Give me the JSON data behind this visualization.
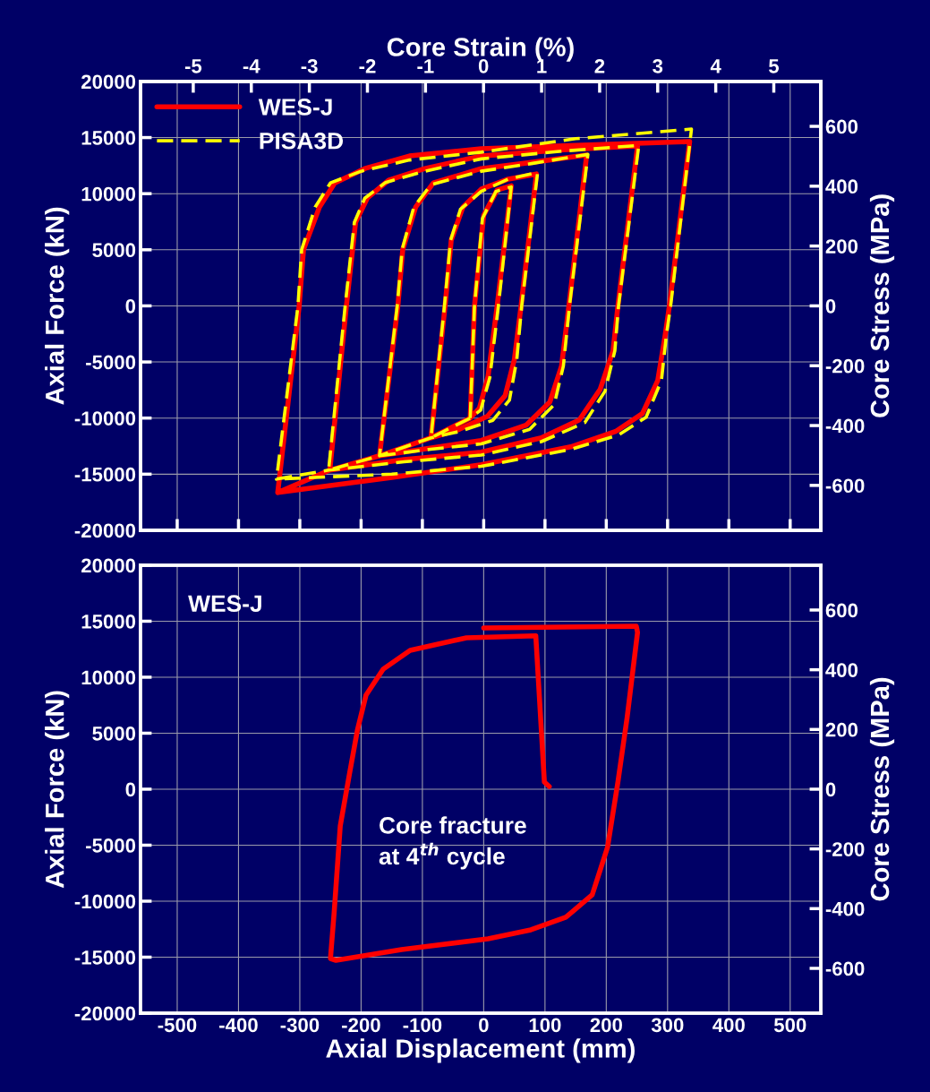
{
  "chart_data": [
    {
      "type": "line",
      "x2label": "Core Strain (%)",
      "ylabel": "Axial Force (kN)",
      "y2label": "Core Stress (MPa)",
      "xlim": [
        -560,
        550
      ],
      "ylim": [
        -20000,
        20000
      ],
      "y2lim": [
        -750,
        750
      ],
      "x2lim": [
        -5.91,
        5.81
      ],
      "xticks": [
        {
          "value": -500,
          "label": null
        },
        {
          "value": -400,
          "label": null
        },
        {
          "value": -300,
          "label": null
        },
        {
          "value": -200,
          "label": null
        },
        {
          "value": -100,
          "label": null
        },
        {
          "value": 0,
          "label": null
        },
        {
          "value": 100,
          "label": null
        },
        {
          "value": 200,
          "label": null
        },
        {
          "value": 300,
          "label": null
        },
        {
          "value": 400,
          "label": null
        },
        {
          "value": 500,
          "label": null
        }
      ],
      "yticks": [
        -20000,
        -15000,
        -10000,
        -5000,
        0,
        5000,
        10000,
        15000,
        20000
      ],
      "y2ticks": [
        -600,
        -400,
        -200,
        0,
        200,
        400,
        600
      ],
      "x2ticks": [
        -5,
        -4,
        -3,
        -2,
        -1,
        0,
        1,
        2,
        3,
        4,
        5
      ],
      "grid": true,
      "legend": "top left",
      "tick_labels": "y",
      "series": [
        {
          "name": "WES-J",
          "color": "#ff0000",
          "line_style": "solid",
          "x": [
            -22,
            -15,
            0,
            22,
            45,
            22,
            7,
            -7,
            -22,
            -86,
            -63,
            -53,
            -34,
            -4,
            40,
            86,
            61,
            50,
            35,
            6,
            -40,
            -86,
            -170,
            -140,
            -132,
            -111,
            -82,
            -4,
            80,
            168,
            139,
            127,
            108,
            69,
            -4,
            -90,
            -170,
            -251,
            -224,
            -209,
            -190,
            -155,
            -96,
            -4,
            130,
            251,
            219,
            211,
            190,
            156,
            94,
            -4,
            -130,
            -251,
            -336,
            -301,
            -294,
            -268,
            -243,
            -194,
            -121,
            -4,
            150,
            336,
            303,
            296,
            284,
            259,
            215,
            142,
            -4,
            -150,
            -336
          ],
          "values": [
            -10000,
            0,
            8080,
            10320,
            10700,
            0,
            -6320,
            -9120,
            -10000,
            -11760,
            0,
            5840,
            8800,
            10400,
            11300,
            11760,
            0,
            -4800,
            -8000,
            -9840,
            -11000,
            -11760,
            -13360,
            0,
            5040,
            8800,
            10960,
            12240,
            12800,
            13440,
            0,
            -5360,
            -8560,
            -10640,
            -12000,
            -12700,
            -13360,
            -14640,
            0,
            7440,
            9600,
            11200,
            12240,
            13360,
            13900,
            14240,
            0,
            -4000,
            -7440,
            -10160,
            -11760,
            -13040,
            -13700,
            -14640,
            -16640,
            0,
            5000,
            8800,
            10960,
            12240,
            13360,
            14000,
            14300,
            14640,
            0,
            -2640,
            -6640,
            -9600,
            -11200,
            -12560,
            -14160,
            -15300,
            -16640
          ]
        },
        {
          "name": "PISA3D",
          "color": "#ffff00",
          "line_style": "dashed",
          "x": [
            -22,
            -15,
            -2,
            20,
            45,
            24,
            10,
            -5,
            -22,
            -86,
            -64,
            -54,
            -38,
            -4,
            40,
            88,
            62,
            54,
            42,
            15,
            -40,
            -86,
            -170,
            -141,
            -133,
            -114,
            -86,
            -4,
            80,
            170,
            140,
            130,
            115,
            75,
            -4,
            -90,
            -170,
            -253,
            -226,
            -211,
            -194,
            -160,
            -96,
            -4,
            130,
            253,
            220,
            214,
            198,
            165,
            94,
            -4,
            -130,
            -253,
            -338,
            -303,
            -297,
            -275,
            -250,
            -200,
            -121,
            -4,
            150,
            339,
            305,
            298,
            290,
            265,
            220,
            142,
            -4,
            -150,
            -338
          ],
          "values": [
            -10000,
            0,
            7800,
            10200,
            10600,
            0,
            -6400,
            -9300,
            -10000,
            -11760,
            0,
            5840,
            8600,
            10200,
            11300,
            11900,
            0,
            -4800,
            -8400,
            -10200,
            -11200,
            -11760,
            -13360,
            0,
            5040,
            8800,
            10800,
            12000,
            12700,
            13500,
            0,
            -5360,
            -8800,
            -11000,
            -12300,
            -12800,
            -13360,
            -14640,
            0,
            7440,
            9600,
            11000,
            12000,
            13100,
            13800,
            14300,
            0,
            -4000,
            -7600,
            -10400,
            -12100,
            -13300,
            -13900,
            -14640,
            -15440,
            0,
            5000,
            8800,
            10960,
            12000,
            13000,
            13700,
            14900,
            15760,
            0,
            -2640,
            -6640,
            -9920,
            -11500,
            -12800,
            -14300,
            -15000,
            -15440
          ]
        }
      ]
    },
    {
      "type": "line",
      "xlabel": "Axial Displacement (mm)",
      "ylabel": "Axial Force (kN)",
      "y2label": "Core Stress (MPa)",
      "xlim": [
        -560,
        550
      ],
      "ylim": [
        -20000,
        20000
      ],
      "y2lim": [
        -750,
        750
      ],
      "xticks": [
        -500,
        -400,
        -300,
        -200,
        -100,
        0,
        100,
        200,
        300,
        400,
        500
      ],
      "yticks": [
        -20000,
        -15000,
        -10000,
        -5000,
        0,
        5000,
        10000,
        15000,
        20000
      ],
      "y2ticks": [
        -600,
        -400,
        -200,
        0,
        200,
        400,
        600
      ],
      "grid": true,
      "annotations": [
        "WES-J",
        "Core fracture\nat 4$^{th}$ cycle"
      ],
      "series": [
        {
          "color": "#ff0000",
          "line_style": "solid",
          "x": [
            0,
            249,
            251,
            234,
            219,
            202,
            177,
            134,
            77,
            7,
            -134,
            -241,
            -250,
            -244,
            -234,
            -219,
            -206,
            -192,
            -164,
            -120,
            -28,
            85,
            99,
            107
          ],
          "values": [
            14400,
            14560,
            14000,
            6400,
            640,
            -5200,
            -9440,
            -11440,
            -12560,
            -13360,
            -14320,
            -15280,
            -15120,
            -11040,
            -3280,
            1360,
            5280,
            8400,
            10720,
            12400,
            13520,
            13700,
            640,
            240
          ]
        }
      ]
    }
  ]
}
